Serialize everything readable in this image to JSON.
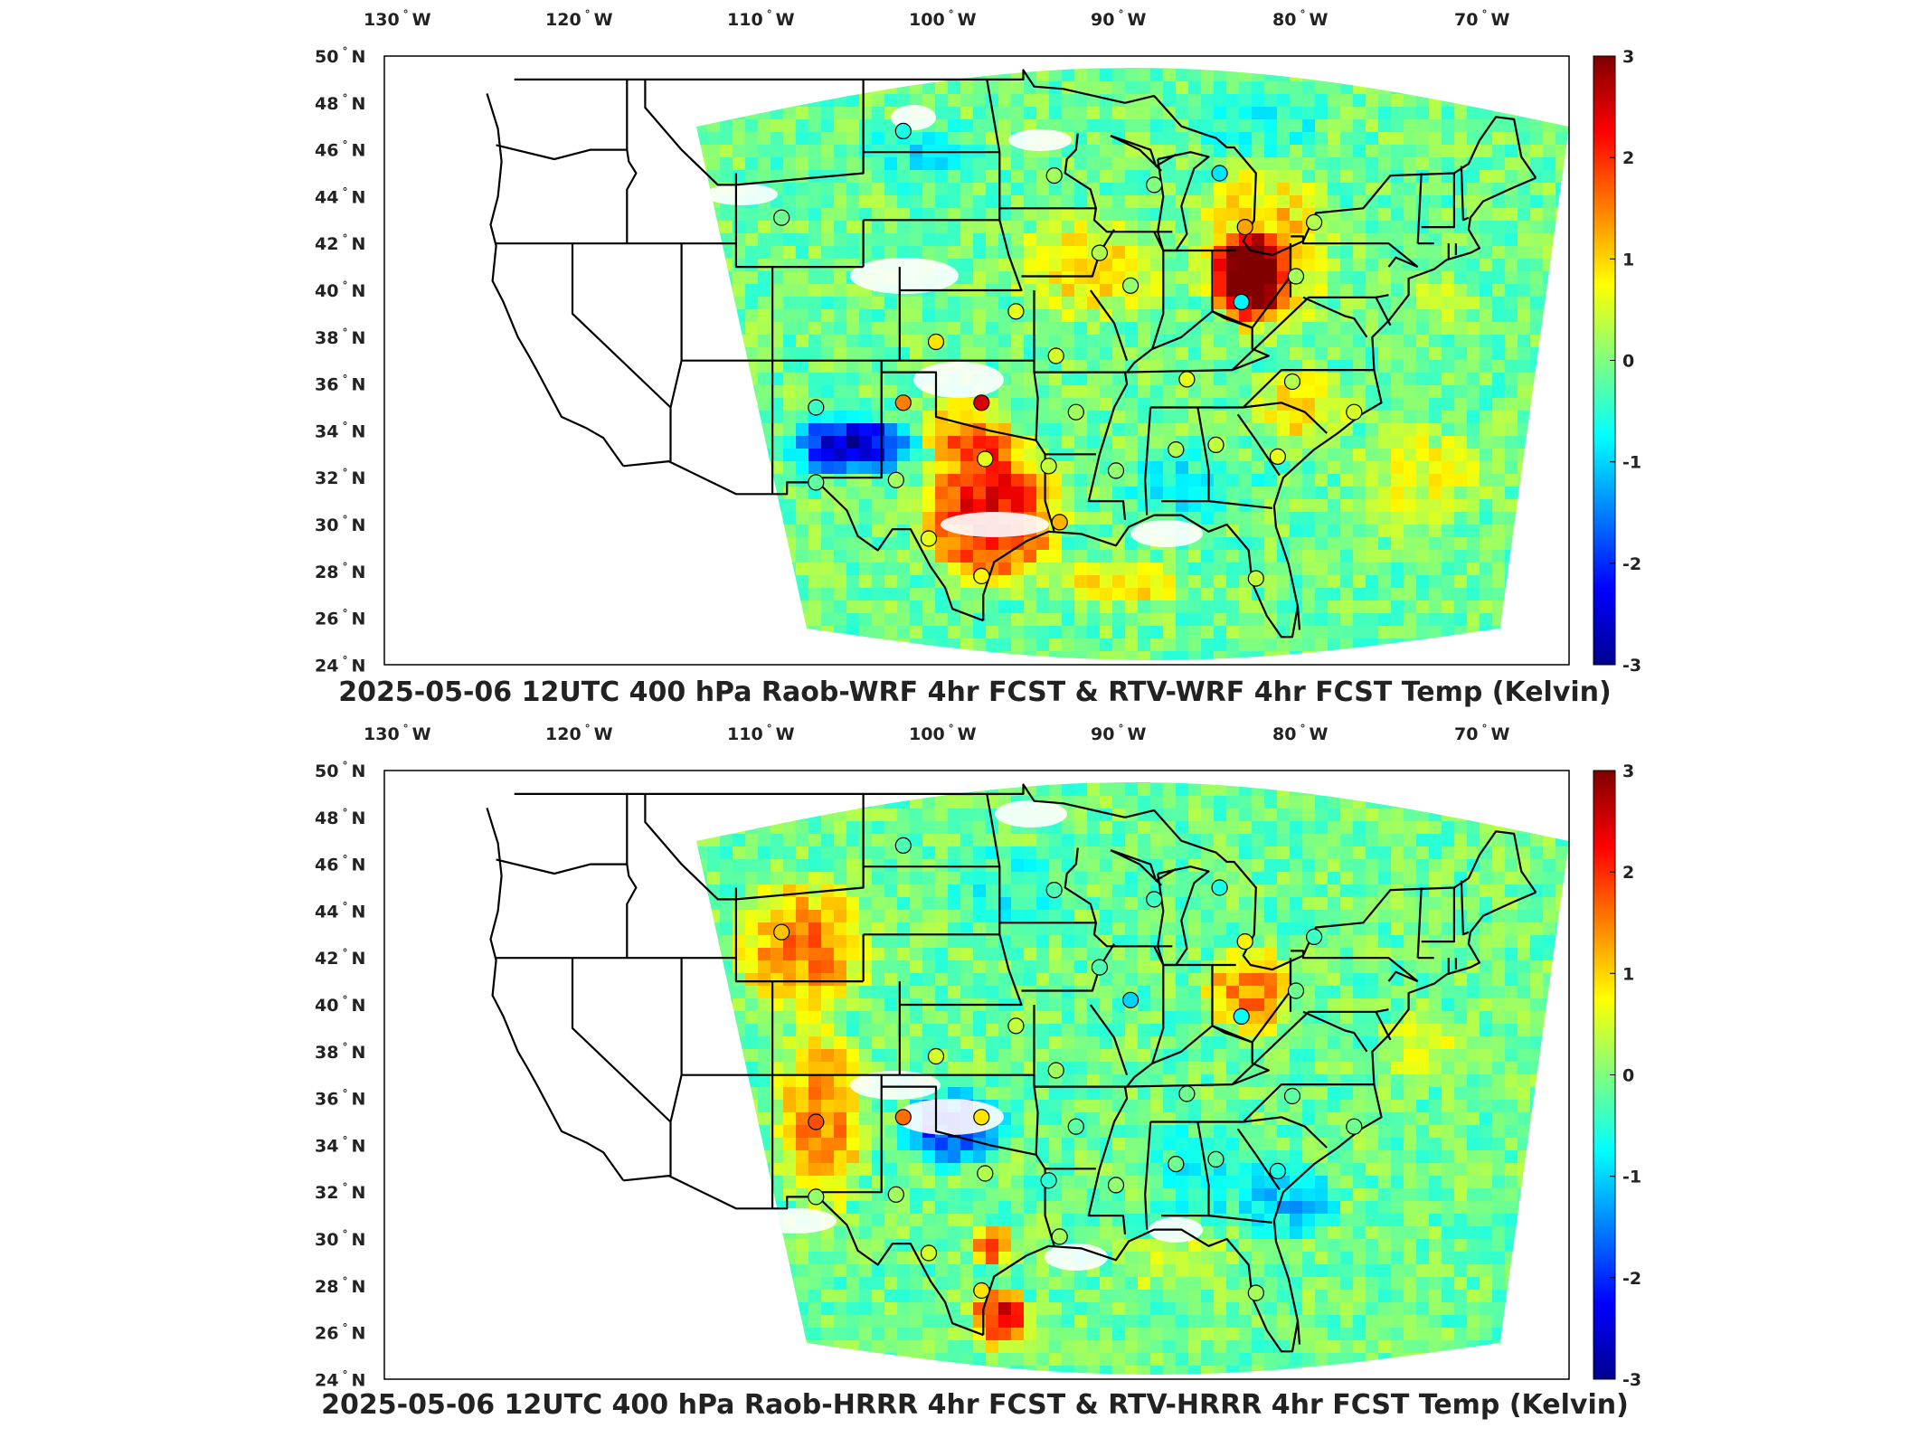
{
  "colors": {
    "background": "#ffffff",
    "axes_box": "#000000",
    "state_lines": "#000000",
    "colormap": "jet"
  },
  "lon_ticks": [
    {
      "deg": "130",
      "hem": "W"
    },
    {
      "deg": "120",
      "hem": "W"
    },
    {
      "deg": "110",
      "hem": "W"
    },
    {
      "deg": "100",
      "hem": "W"
    },
    {
      "deg": "90",
      "hem": "W"
    },
    {
      "deg": "80",
      "hem": "W"
    },
    {
      "deg": "70",
      "hem": "W"
    }
  ],
  "lat_ticks": [
    {
      "deg": "50",
      "hem": "N"
    },
    {
      "deg": "48",
      "hem": "N"
    },
    {
      "deg": "46",
      "hem": "N"
    },
    {
      "deg": "44",
      "hem": "N"
    },
    {
      "deg": "42",
      "hem": "N"
    },
    {
      "deg": "40",
      "hem": "N"
    },
    {
      "deg": "38",
      "hem": "N"
    },
    {
      "deg": "36",
      "hem": "N"
    },
    {
      "deg": "34",
      "hem": "N"
    },
    {
      "deg": "32",
      "hem": "N"
    },
    {
      "deg": "30",
      "hem": "N"
    },
    {
      "deg": "28",
      "hem": "N"
    },
    {
      "deg": "26",
      "hem": "N"
    },
    {
      "deg": "24",
      "hem": "N"
    }
  ],
  "colorbar": {
    "min": -3,
    "max": 3,
    "tick_labels": [
      "3",
      "2",
      "1",
      "0",
      "-1",
      "-2",
      "-3"
    ]
  },
  "panels": [
    {
      "id": "top",
      "title": "2025-05-06 12UTC 400 hPa Raob-WRF 4hr FCST & RTV-WRF 4hr FCST Temp (Kelvin)",
      "stations": [
        {
          "lon": -101.8,
          "lat": 46.8,
          "v": -0.6
        },
        {
          "lon": -108.5,
          "lat": 43.1,
          "v": -0.1
        },
        {
          "lon": -93.5,
          "lat": 44.9,
          "v": 0.2
        },
        {
          "lon": -88.0,
          "lat": 44.5,
          "v": 0.0
        },
        {
          "lon": -84.4,
          "lat": 45.0,
          "v": -0.9
        },
        {
          "lon": -83.0,
          "lat": 42.7,
          "v": 1.3
        },
        {
          "lon": -79.2,
          "lat": 42.9,
          "v": 0.3
        },
        {
          "lon": -91.0,
          "lat": 41.6,
          "v": 0.3
        },
        {
          "lon": -89.3,
          "lat": 40.2,
          "v": 0.1
        },
        {
          "lon": -83.2,
          "lat": 39.5,
          "v": -0.8
        },
        {
          "lon": -80.2,
          "lat": 40.6,
          "v": 0.2
        },
        {
          "lon": -95.6,
          "lat": 39.1,
          "v": 0.6
        },
        {
          "lon": -100.0,
          "lat": 37.8,
          "v": 0.9
        },
        {
          "lon": -93.4,
          "lat": 37.2,
          "v": 0.5
        },
        {
          "lon": -86.2,
          "lat": 36.2,
          "v": 0.6
        },
        {
          "lon": -80.4,
          "lat": 36.1,
          "v": 0.3
        },
        {
          "lon": -101.8,
          "lat": 35.2,
          "v": 1.5
        },
        {
          "lon": -97.5,
          "lat": 35.2,
          "v": 2.5
        },
        {
          "lon": -106.6,
          "lat": 35.0,
          "v": -0.4
        },
        {
          "lon": -92.3,
          "lat": 34.8,
          "v": 0.2
        },
        {
          "lon": -77.0,
          "lat": 34.8,
          "v": 0.5
        },
        {
          "lon": -97.3,
          "lat": 32.8,
          "v": 0.6
        },
        {
          "lon": -93.8,
          "lat": 32.5,
          "v": 0.4
        },
        {
          "lon": -90.1,
          "lat": 32.3,
          "v": 0.1
        },
        {
          "lon": -86.8,
          "lat": 33.2,
          "v": 0.3
        },
        {
          "lon": -84.6,
          "lat": 33.4,
          "v": 0.4
        },
        {
          "lon": -81.2,
          "lat": 32.9,
          "v": 0.6
        },
        {
          "lon": -106.6,
          "lat": 31.8,
          "v": -0.2
        },
        {
          "lon": -102.2,
          "lat": 31.9,
          "v": 0.2
        },
        {
          "lon": -100.4,
          "lat": 29.4,
          "v": 0.6
        },
        {
          "lon": -93.2,
          "lat": 30.1,
          "v": 1.2
        },
        {
          "lon": -97.5,
          "lat": 27.8,
          "v": 0.8
        },
        {
          "lon": -82.4,
          "lat": 27.7,
          "v": 0.4
        }
      ]
    },
    {
      "id": "bottom",
      "title": "2025-05-06 12UTC 400 hPa Raob-HRRR 4hr FCST & RTV-HRRR 4hr FCST Temp (Kelvin)",
      "stations": [
        {
          "lon": -101.8,
          "lat": 46.8,
          "v": -0.3
        },
        {
          "lon": -108.5,
          "lat": 43.1,
          "v": 1.1
        },
        {
          "lon": -93.5,
          "lat": 44.9,
          "v": -0.3
        },
        {
          "lon": -88.0,
          "lat": 44.5,
          "v": -0.4
        },
        {
          "lon": -84.4,
          "lat": 45.0,
          "v": -0.6
        },
        {
          "lon": -83.0,
          "lat": 42.7,
          "v": 0.8
        },
        {
          "lon": -79.2,
          "lat": 42.9,
          "v": -0.4
        },
        {
          "lon": -91.0,
          "lat": 41.6,
          "v": -0.3
        },
        {
          "lon": -89.3,
          "lat": 40.2,
          "v": -1.0
        },
        {
          "lon": -83.2,
          "lat": 39.5,
          "v": -0.7
        },
        {
          "lon": -80.2,
          "lat": 40.6,
          "v": -0.1
        },
        {
          "lon": -95.6,
          "lat": 39.1,
          "v": 0.4
        },
        {
          "lon": -100.0,
          "lat": 37.8,
          "v": 0.5
        },
        {
          "lon": -93.4,
          "lat": 37.2,
          "v": 0.2
        },
        {
          "lon": -86.2,
          "lat": 36.2,
          "v": -0.1
        },
        {
          "lon": -80.4,
          "lat": 36.1,
          "v": -0.2
        },
        {
          "lon": -101.8,
          "lat": 35.2,
          "v": 1.6
        },
        {
          "lon": -97.5,
          "lat": 35.2,
          "v": 0.9
        },
        {
          "lon": -106.6,
          "lat": 35.0,
          "v": 1.8
        },
        {
          "lon": -92.3,
          "lat": 34.8,
          "v": -0.2
        },
        {
          "lon": -77.0,
          "lat": 34.8,
          "v": -0.1
        },
        {
          "lon": -97.3,
          "lat": 32.8,
          "v": 0.3
        },
        {
          "lon": -93.8,
          "lat": 32.5,
          "v": -0.5
        },
        {
          "lon": -90.1,
          "lat": 32.3,
          "v": 0.1
        },
        {
          "lon": -86.8,
          "lat": 33.2,
          "v": -0.1
        },
        {
          "lon": -84.6,
          "lat": 33.4,
          "v": -0.2
        },
        {
          "lon": -81.2,
          "lat": 32.9,
          "v": -0.6
        },
        {
          "lon": -106.6,
          "lat": 31.8,
          "v": 0.1
        },
        {
          "lon": -102.2,
          "lat": 31.9,
          "v": 0.2
        },
        {
          "lon": -100.4,
          "lat": 29.4,
          "v": 0.5
        },
        {
          "lon": -93.2,
          "lat": 30.1,
          "v": 0.2
        },
        {
          "lon": -97.5,
          "lat": 27.8,
          "v": 0.9
        },
        {
          "lon": -82.4,
          "lat": 27.7,
          "v": 0.2
        }
      ]
    }
  ]
}
